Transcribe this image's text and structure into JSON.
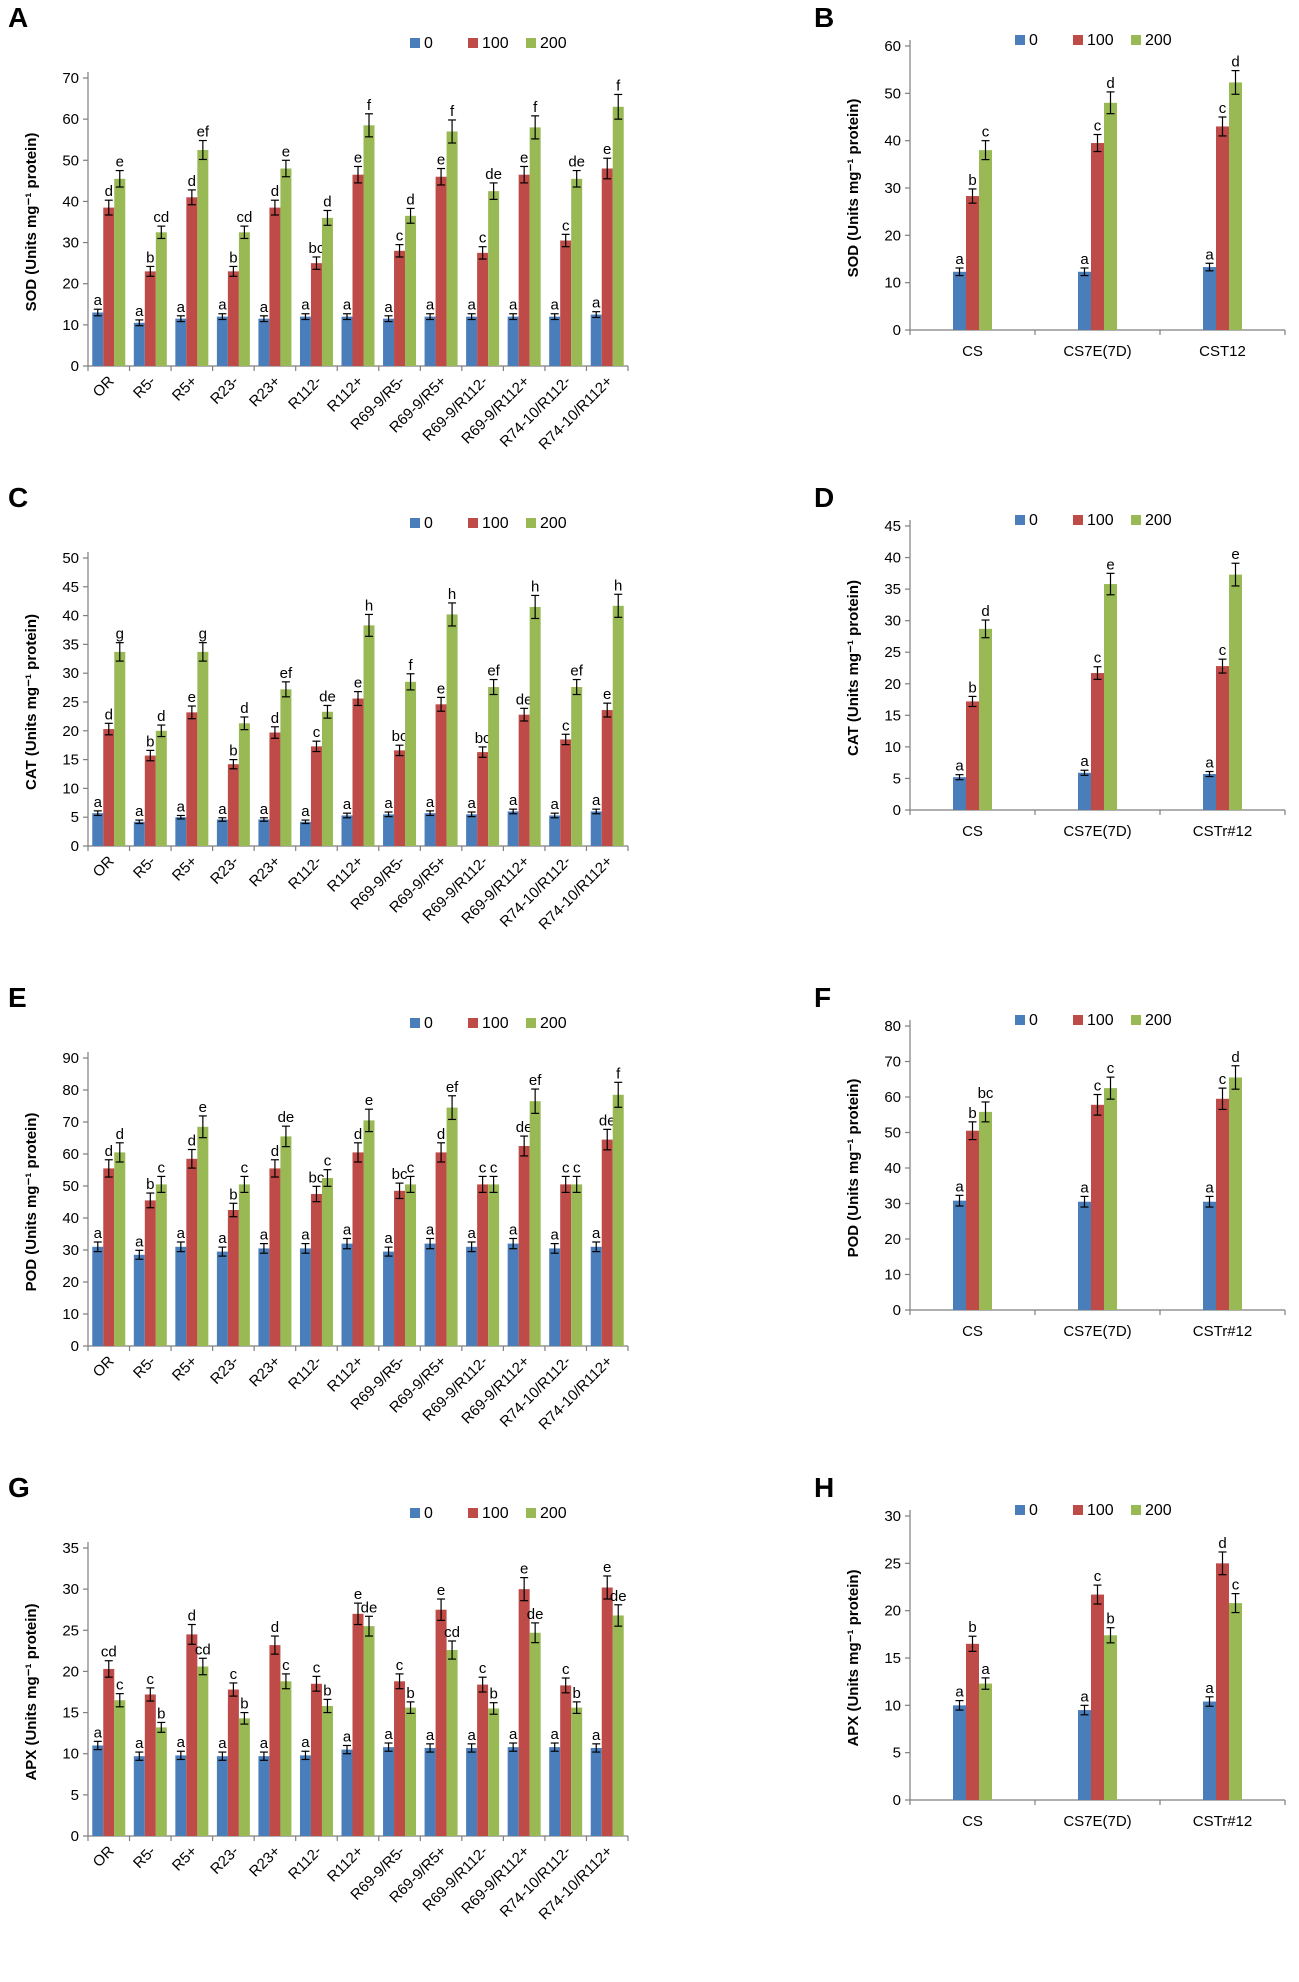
{
  "colors": {
    "s0": "#4a7ebb",
    "s100": "#be4b48",
    "s200": "#98b954"
  },
  "panels": [
    {
      "id": "A",
      "label": "A",
      "chart_data": {
        "type": "bar",
        "ylabel": "SOD (Units mg⁻¹ protein)",
        "ylim": [
          0,
          70
        ],
        "ystep": 10,
        "legend": [
          "0",
          "100",
          "200"
        ],
        "categories": [
          "OR",
          "R5-",
          "R5+",
          "R23-",
          "R23+",
          "R112-",
          "R112+",
          "R69-9/R5-",
          "R69-9/R5+",
          "R69-9/R112-",
          "R69-9/R112+",
          "R74-10/R112-",
          "R74-10/R112+"
        ],
        "series": [
          {
            "name": "0",
            "values": [
              13,
              10.5,
              11.5,
              12,
              11.5,
              12,
              12,
              11.5,
              12,
              12,
              12,
              12,
              12.5
            ],
            "errors": [
              0.8,
              0.7,
              0.7,
              0.7,
              0.7,
              0.7,
              0.7,
              0.7,
              0.7,
              0.7,
              0.7,
              0.7,
              0.7
            ],
            "letters": [
              "a",
              "a",
              "a",
              "a",
              "a",
              "a",
              "a",
              "a",
              "a",
              "a",
              "a",
              "a",
              "a"
            ]
          },
          {
            "name": "100",
            "values": [
              38.5,
              23,
              41,
              23,
              38.5,
              25,
              46.5,
              28,
              46,
              27.5,
              46.5,
              30.5,
              48
            ],
            "errors": [
              1.8,
              1.2,
              1.8,
              1.2,
              1.8,
              1.5,
              2,
              1.5,
              2,
              1.5,
              2,
              1.5,
              2.5
            ],
            "letters": [
              "d",
              "b",
              "d",
              "b",
              "d",
              "bc",
              "e",
              "c",
              "e",
              "c",
              "e",
              "c",
              "e"
            ]
          },
          {
            "name": "200",
            "values": [
              45.5,
              32.5,
              52.5,
              32.5,
              48,
              36,
              58.5,
              36.5,
              57,
              42.5,
              58,
              45.5,
              63
            ],
            "errors": [
              2,
              1.5,
              2.3,
              1.5,
              2,
              1.8,
              2.8,
              1.8,
              2.8,
              2,
              2.8,
              2,
              3
            ],
            "letters": [
              "e",
              "cd",
              "ef",
              "cd",
              "e",
              "d",
              "f",
              "d",
              "f",
              "de",
              "f",
              "de",
              "f"
            ]
          }
        ]
      }
    },
    {
      "id": "B",
      "label": "B",
      "chart_data": {
        "type": "bar",
        "ylabel": "SOD (Units mg⁻¹ protein)",
        "ylim": [
          0,
          60
        ],
        "ystep": 10,
        "legend": [
          "0",
          "100",
          "200"
        ],
        "categories": [
          "CS",
          "CS7E(7D)",
          "CST12"
        ],
        "series": [
          {
            "name": "0",
            "values": [
              12.3,
              12.3,
              13.3
            ],
            "errors": [
              0.8,
              0.8,
              0.8
            ],
            "letters": [
              "a",
              "a",
              "a"
            ]
          },
          {
            "name": "100",
            "values": [
              28.3,
              39.5,
              43
            ],
            "errors": [
              1.5,
              1.8,
              2
            ],
            "letters": [
              "b",
              "c",
              "c"
            ]
          },
          {
            "name": "200",
            "values": [
              38,
              48,
              52.3
            ],
            "errors": [
              2,
              2.3,
              2.5
            ],
            "letters": [
              "c",
              "d",
              "d"
            ]
          }
        ]
      }
    },
    {
      "id": "C",
      "label": "C",
      "chart_data": {
        "type": "bar",
        "ylabel": "CAT (Units mg⁻¹ protein)",
        "ylim": [
          0,
          50
        ],
        "ystep": 5,
        "legend": [
          "0",
          "100",
          "200"
        ],
        "categories": [
          "OR",
          "R5-",
          "R5+",
          "R23-",
          "R23+",
          "R112-",
          "R112+",
          "R69-9/R5-",
          "R69-9/R5+",
          "R69-9/R112-",
          "R69-9/R112+",
          "R74-10/R112-",
          "R74-10/R112+"
        ],
        "series": [
          {
            "name": "0",
            "values": [
              5.7,
              4.2,
              5,
              4.6,
              4.6,
              4.2,
              5.3,
              5.5,
              5.7,
              5.5,
              6,
              5.3,
              6
            ],
            "errors": [
              0.4,
              0.3,
              0.3,
              0.3,
              0.3,
              0.3,
              0.4,
              0.4,
              0.4,
              0.4,
              0.4,
              0.4,
              0.4
            ],
            "letters": [
              "a",
              "a",
              "a",
              "a",
              "a",
              "a",
              "a",
              "a",
              "a",
              "a",
              "a",
              "a",
              "a"
            ]
          },
          {
            "name": "100",
            "values": [
              20.3,
              15.7,
              23.2,
              14.2,
              19.7,
              17.3,
              25.6,
              16.6,
              24.6,
              16.3,
              22.8,
              18.5,
              23.6
            ],
            "errors": [
              1,
              0.9,
              1.1,
              0.8,
              1,
              0.9,
              1.2,
              0.9,
              1.2,
              0.9,
              1.1,
              0.9,
              1.2
            ],
            "letters": [
              "d",
              "b",
              "e",
              "b",
              "d",
              "c",
              "e",
              "bc",
              "e",
              "bc",
              "de",
              "c",
              "e"
            ]
          },
          {
            "name": "200",
            "values": [
              33.7,
              20,
              33.7,
              21.3,
              27.2,
              23.3,
              38.3,
              28.5,
              40.2,
              27.6,
              41.5,
              27.6,
              41.7
            ],
            "errors": [
              1.6,
              1,
              1.6,
              1.1,
              1.3,
              1.1,
              1.9,
              1.4,
              2,
              1.3,
              2,
              1.3,
              2
            ],
            "letters": [
              "g",
              "d",
              "g",
              "d",
              "ef",
              "de",
              "h",
              "f",
              "h",
              "ef",
              "h",
              "ef",
              "h"
            ]
          }
        ]
      }
    },
    {
      "id": "D",
      "label": "D",
      "chart_data": {
        "type": "bar",
        "ylabel": "CAT (Units mg⁻¹ protein)",
        "ylim": [
          0,
          45
        ],
        "ystep": 5,
        "legend": [
          "0",
          "100",
          "200"
        ],
        "categories": [
          "CS",
          "CS7E(7D)",
          "CSTr#12"
        ],
        "series": [
          {
            "name": "0",
            "values": [
              5.2,
              5.9,
              5.7
            ],
            "errors": [
              0.4,
              0.4,
              0.4
            ],
            "letters": [
              "a",
              "a",
              "a"
            ]
          },
          {
            "name": "100",
            "values": [
              17.2,
              21.7,
              22.8
            ],
            "errors": [
              0.8,
              1,
              1.1
            ],
            "letters": [
              "b",
              "c",
              "c"
            ]
          },
          {
            "name": "200",
            "values": [
              28.7,
              35.8,
              37.3
            ],
            "errors": [
              1.4,
              1.7,
              1.8
            ],
            "letters": [
              "d",
              "e",
              "e"
            ]
          }
        ]
      }
    },
    {
      "id": "E",
      "label": "E",
      "chart_data": {
        "type": "bar",
        "ylabel": "POD (Units mg⁻¹ protein)",
        "ylim": [
          0,
          90
        ],
        "ystep": 10,
        "legend": [
          "0",
          "100",
          "200"
        ],
        "categories": [
          "OR",
          "R5-",
          "R5+",
          "R23-",
          "R23+",
          "R112-",
          "R112+",
          "R69-9/R5-",
          "R69-9/R5+",
          "R69-9/R112-",
          "R69-9/R112+",
          "R74-10/R112-",
          "R74-10/R112+"
        ],
        "series": [
          {
            "name": "0",
            "values": [
              31,
              28.5,
              31,
              29.5,
              30.5,
              30.5,
              32,
              29.5,
              32,
              31,
              32,
              30.5,
              31
            ],
            "errors": [
              1.5,
              1.4,
              1.5,
              1.4,
              1.5,
              1.5,
              1.6,
              1.4,
              1.6,
              1.5,
              1.6,
              1.5,
              1.5
            ],
            "letters": [
              "a",
              "a",
              "a",
              "a",
              "a",
              "a",
              "a",
              "a",
              "a",
              "a",
              "a",
              "a",
              "a"
            ]
          },
          {
            "name": "100",
            "values": [
              55.5,
              45.5,
              58.5,
              42.5,
              55.5,
              47.5,
              60.5,
              48.5,
              60.5,
              50.5,
              62.5,
              50.5,
              64.5
            ],
            "errors": [
              2.7,
              2.3,
              2.9,
              2.1,
              2.7,
              2.4,
              3,
              2.4,
              3,
              2.5,
              3.1,
              2.5,
              3.2
            ],
            "letters": [
              "d",
              "b",
              "d",
              "b",
              "d",
              "bc",
              "d",
              "bc",
              "d",
              "c",
              "de",
              "c",
              "de"
            ]
          },
          {
            "name": "200",
            "values": [
              60.5,
              50.5,
              68.5,
              50.5,
              65.5,
              52.5,
              70.5,
              50.5,
              74.5,
              50.5,
              76.5,
              50.5,
              78.5
            ],
            "errors": [
              3,
              2.5,
              3.4,
              2.5,
              3.2,
              2.6,
              3.5,
              2.5,
              3.7,
              2.5,
              3.8,
              2.5,
              3.9
            ],
            "letters": [
              "d",
              "c",
              "e",
              "c",
              "de",
              "c",
              "e",
              "c",
              "ef",
              "c",
              "ef",
              "c",
              "f"
            ]
          }
        ]
      }
    },
    {
      "id": "F",
      "label": "F",
      "chart_data": {
        "type": "bar",
        "ylabel": "POD (Units mg⁻¹ protein)",
        "ylim": [
          0,
          80
        ],
        "ystep": 10,
        "legend": [
          "0",
          "100",
          "200"
        ],
        "categories": [
          "CS",
          "CS7E(7D)",
          "CSTr#12"
        ],
        "series": [
          {
            "name": "0",
            "values": [
              30.8,
              30.5,
              30.5
            ],
            "errors": [
              1.5,
              1.5,
              1.5
            ],
            "letters": [
              "a",
              "a",
              "a"
            ]
          },
          {
            "name": "100",
            "values": [
              50.5,
              57.8,
              59.5
            ],
            "errors": [
              2.5,
              2.9,
              3
            ],
            "letters": [
              "b",
              "c",
              "c"
            ]
          },
          {
            "name": "200",
            "values": [
              55.8,
              62.5,
              65.5
            ],
            "errors": [
              2.8,
              3.1,
              3.3
            ],
            "letters": [
              "bc",
              "c",
              "d"
            ]
          }
        ]
      }
    },
    {
      "id": "G",
      "label": "G",
      "chart_data": {
        "type": "bar",
        "ylabel": "APX (Units mg⁻¹ protein)",
        "ylim": [
          0,
          35
        ],
        "ystep": 5,
        "legend": [
          "0",
          "100",
          "200"
        ],
        "categories": [
          "OR",
          "R5-",
          "R5+",
          "R23-",
          "R23+",
          "R112-",
          "R112+",
          "R69-9/R5-",
          "R69-9/R5+",
          "R69-9/R112-",
          "R69-9/R112+",
          "R74-10/R112-",
          "R74-10/R112+"
        ],
        "series": [
          {
            "name": "0",
            "values": [
              11,
              9.7,
              9.8,
              9.7,
              9.7,
              9.8,
              10.5,
              10.8,
              10.7,
              10.7,
              10.8,
              10.8,
              10.7
            ],
            "errors": [
              0.5,
              0.5,
              0.5,
              0.5,
              0.5,
              0.5,
              0.5,
              0.5,
              0.5,
              0.5,
              0.5,
              0.5,
              0.5
            ],
            "letters": [
              "a",
              "a",
              "a",
              "a",
              "a",
              "a",
              "a",
              "a",
              "a",
              "a",
              "a",
              "a",
              "a"
            ]
          },
          {
            "name": "100",
            "values": [
              20.3,
              17.2,
              24.5,
              17.8,
              23.2,
              18.5,
              27,
              18.8,
              27.5,
              18.4,
              30,
              18.3,
              30.2
            ],
            "errors": [
              1,
              0.8,
              1.2,
              0.8,
              1.1,
              0.9,
              1.3,
              0.9,
              1.3,
              0.9,
              1.4,
              0.9,
              1.4
            ],
            "letters": [
              "cd",
              "c",
              "d",
              "c",
              "d",
              "c",
              "e",
              "c",
              "e",
              "c",
              "e",
              "c",
              "e"
            ]
          },
          {
            "name": "200",
            "values": [
              16.5,
              13.2,
              20.6,
              14.3,
              18.8,
              15.8,
              25.5,
              15.6,
              22.6,
              15.5,
              24.7,
              15.6,
              26.8
            ],
            "errors": [
              0.8,
              0.6,
              1,
              0.7,
              0.9,
              0.8,
              1.2,
              0.7,
              1.1,
              0.7,
              1.2,
              0.7,
              1.3
            ],
            "letters": [
              "c",
              "b",
              "cd",
              "b",
              "c",
              "b",
              "de",
              "b",
              "cd",
              "b",
              "de",
              "b",
              "de"
            ]
          }
        ]
      }
    },
    {
      "id": "H",
      "label": "H",
      "chart_data": {
        "type": "bar",
        "ylabel": "APX (Units mg⁻¹ protein)",
        "ylim": [
          0,
          30
        ],
        "ystep": 5,
        "legend": [
          "0",
          "100",
          "200"
        ],
        "categories": [
          "CS",
          "CS7E(7D)",
          "CSTr#12"
        ],
        "series": [
          {
            "name": "0",
            "values": [
              10,
              9.5,
              10.4
            ],
            "errors": [
              0.5,
              0.5,
              0.5
            ],
            "letters": [
              "a",
              "a",
              "a"
            ]
          },
          {
            "name": "100",
            "values": [
              16.5,
              21.7,
              25
            ],
            "errors": [
              0.8,
              1,
              1.2
            ],
            "letters": [
              "b",
              "c",
              "d"
            ]
          },
          {
            "name": "200",
            "values": [
              12.3,
              17.4,
              20.8
            ],
            "errors": [
              0.6,
              0.8,
              1
            ],
            "letters": [
              "a",
              "b",
              "c"
            ]
          }
        ]
      }
    }
  ]
}
